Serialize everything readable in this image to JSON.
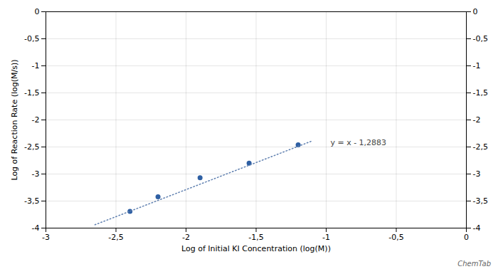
{
  "chart_data": {
    "type": "scatter",
    "xlabel": "Log of Initial KI Concentration (log(M))",
    "ylabel": "Log of Reaction Rate (log(M/s))",
    "caption": "ChemTab",
    "series": [
      {
        "type": "scatter",
        "color": "#2e5fa3",
        "x": [
          -2.4,
          -2.2,
          -1.9,
          -1.55,
          -1.2
        ],
        "values": [
          -3.69,
          -3.42,
          -3.07,
          -2.8,
          -2.46
        ]
      },
      {
        "type": "line",
        "line_style": "dotted",
        "color": "#6080b0",
        "x": [
          -2.65,
          -1.1
        ],
        "values": [
          -3.9383,
          -2.3883
        ]
      }
    ],
    "annotations": [
      {
        "text": "y = x - 1,2883",
        "x": -0.97,
        "y": -2.42
      }
    ],
    "xlim": [
      -3,
      0
    ],
    "ylim": [
      -4,
      0
    ],
    "xticks": [
      -3,
      {
        "value": -2.5,
        "label": "-2,5"
      },
      -2,
      {
        "value": -1.5,
        "label": "-1,5"
      },
      -1,
      {
        "value": -0.5,
        "label": "-0,5"
      },
      0
    ],
    "yticks": [
      -4,
      {
        "value": -3.5,
        "label": "-3,5"
      },
      -3,
      {
        "value": -2.5,
        "label": "-2,5"
      },
      -2,
      {
        "value": -1.5,
        "label": "-1,5"
      },
      -1,
      {
        "value": -0.5,
        "label": "-0,5"
      },
      0
    ],
    "grid": true
  }
}
